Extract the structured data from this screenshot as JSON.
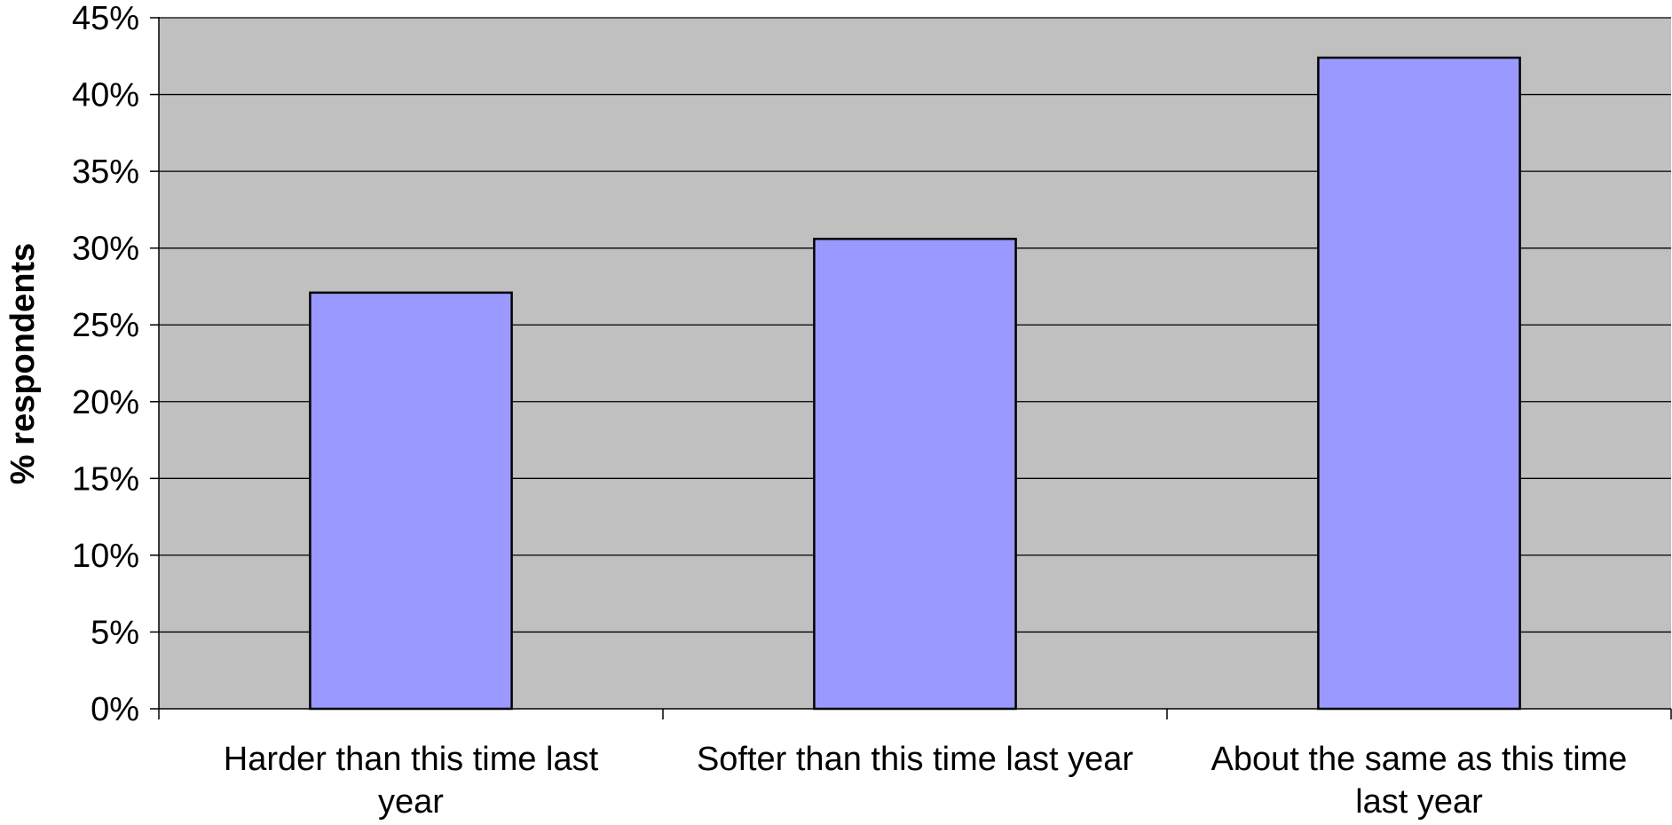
{
  "chart_data": {
    "type": "bar",
    "categories": [
      [
        "Harder than this time last",
        "year"
      ],
      [
        "Softer than this time last year"
      ],
      [
        "About the same as this time",
        "last year"
      ]
    ],
    "values": [
      27.1,
      30.6,
      42.4
    ],
    "ylabel": "% respondents",
    "xlabel": "",
    "ylim": [
      0,
      45
    ],
    "y_ticks": [
      "0%",
      "5%",
      "10%",
      "15%",
      "20%",
      "25%",
      "30%",
      "35%",
      "40%",
      "45%"
    ],
    "y_tick_values": [
      0,
      5,
      10,
      15,
      20,
      25,
      30,
      35,
      40,
      45
    ],
    "grid": true,
    "legend": "none",
    "colors": {
      "bar_fill": "#9999ff",
      "bar_stroke": "#000000",
      "plot_background": "#c0c0c0",
      "gridline": "#000000"
    }
  }
}
